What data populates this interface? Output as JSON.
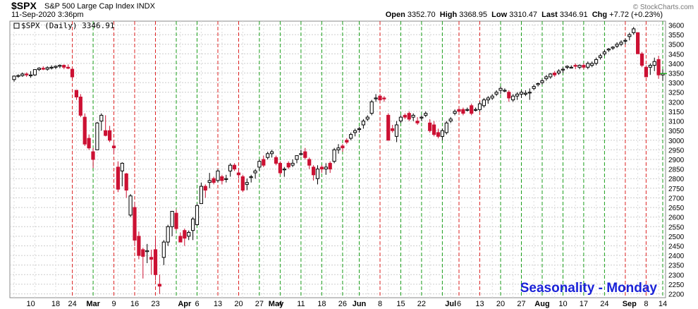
{
  "header": {
    "symbol": "$SPX",
    "description": "S&P 500 Large Cap Index  INDX",
    "date": "11-Sep-2020 3:36pm",
    "open_label": "Open",
    "open": "3352.70",
    "high_label": "High",
    "high": "3368.95",
    "low_label": "Low",
    "low": "3310.47",
    "last_label": "Last",
    "last": "3346.91",
    "chg_label": "Chg",
    "chg": "+7.72 (+0.23%)",
    "credit": "© StockCharts.com"
  },
  "chart_data": {
    "type": "candlestick",
    "legend": "$SPX (Daily) 3346.91",
    "annotation": "Seasonality - Monday",
    "ylim": [
      2180,
      3620
    ],
    "y_ticks": [
      2200,
      2250,
      2300,
      2350,
      2400,
      2450,
      2500,
      2550,
      2600,
      2650,
      2700,
      2750,
      2800,
      2850,
      2900,
      2950,
      3000,
      3050,
      3100,
      3150,
      3200,
      3250,
      3300,
      3350,
      3400,
      3450,
      3500,
      3550,
      3600
    ],
    "x_ticks": [
      {
        "label": "10",
        "i": 4,
        "bold": false
      },
      {
        "label": "18",
        "i": 10,
        "bold": false
      },
      {
        "label": "24",
        "i": 14,
        "bold": false
      },
      {
        "label": "Mar",
        "i": 19,
        "bold": true
      },
      {
        "label": "9",
        "i": 24,
        "bold": false
      },
      {
        "label": "16",
        "i": 29,
        "bold": false
      },
      {
        "label": "23",
        "i": 34,
        "bold": false
      },
      {
        "label": "Apr",
        "i": 41,
        "bold": true
      },
      {
        "label": "6",
        "i": 44,
        "bold": false
      },
      {
        "label": "13",
        "i": 49,
        "bold": false
      },
      {
        "label": "20",
        "i": 54,
        "bold": false
      },
      {
        "label": "27",
        "i": 59,
        "bold": false
      },
      {
        "label": "May",
        "i": 63,
        "bold": true
      },
      {
        "label": "4",
        "i": 64,
        "bold": false
      },
      {
        "label": "11",
        "i": 69,
        "bold": false
      },
      {
        "label": "18",
        "i": 74,
        "bold": false
      },
      {
        "label": "26",
        "i": 79,
        "bold": false
      },
      {
        "label": "Jun",
        "i": 83,
        "bold": true
      },
      {
        "label": "8",
        "i": 88,
        "bold": false
      },
      {
        "label": "15",
        "i": 93,
        "bold": false
      },
      {
        "label": "22",
        "i": 98,
        "bold": false
      },
      {
        "label": "Jul",
        "i": 105,
        "bold": true
      },
      {
        "label": "6",
        "i": 107,
        "bold": false
      },
      {
        "label": "13",
        "i": 112,
        "bold": false
      },
      {
        "label": "20",
        "i": 117,
        "bold": false
      },
      {
        "label": "27",
        "i": 122,
        "bold": false
      },
      {
        "label": "Aug",
        "i": 127,
        "bold": true
      },
      {
        "label": "10",
        "i": 132,
        "bold": false
      },
      {
        "label": "17",
        "i": 137,
        "bold": false
      },
      {
        "label": "24",
        "i": 142,
        "bold": false
      },
      {
        "label": "Sep",
        "i": 148,
        "bold": true
      },
      {
        "label": "8",
        "i": 152,
        "bold": false
      },
      {
        "label": "14",
        "i": 156,
        "bold": false
      }
    ],
    "monday_lines": [
      {
        "i": 14,
        "color": "red"
      },
      {
        "i": 19,
        "color": "green"
      },
      {
        "i": 24,
        "color": "red"
      },
      {
        "i": 29,
        "color": "red"
      },
      {
        "i": 34,
        "color": "red"
      },
      {
        "i": 39,
        "color": "green"
      },
      {
        "i": 44,
        "color": "green"
      },
      {
        "i": 49,
        "color": "red"
      },
      {
        "i": 54,
        "color": "red"
      },
      {
        "i": 59,
        "color": "green"
      },
      {
        "i": 64,
        "color": "green"
      },
      {
        "i": 69,
        "color": "green"
      },
      {
        "i": 74,
        "color": "green"
      },
      {
        "i": 79,
        "color": "green"
      },
      {
        "i": 83,
        "color": "green"
      },
      {
        "i": 88,
        "color": "red"
      },
      {
        "i": 93,
        "color": "green"
      },
      {
        "i": 98,
        "color": "green"
      },
      {
        "i": 103,
        "color": "green"
      },
      {
        "i": 107,
        "color": "red"
      },
      {
        "i": 112,
        "color": "red"
      },
      {
        "i": 117,
        "color": "green"
      },
      {
        "i": 122,
        "color": "green"
      },
      {
        "i": 127,
        "color": "green"
      },
      {
        "i": 132,
        "color": "green"
      },
      {
        "i": 137,
        "color": "green"
      },
      {
        "i": 142,
        "color": "green"
      },
      {
        "i": 147,
        "color": "red"
      },
      {
        "i": 152,
        "color": "red"
      },
      {
        "i": 156,
        "color": "green"
      }
    ],
    "gridline_every": 5,
    "candles": [
      [
        3316,
        3337,
        3305,
        3334
      ],
      [
        3334,
        3343,
        3325,
        3337
      ],
      [
        3337,
        3353,
        3330,
        3345
      ],
      [
        3345,
        3353,
        3330,
        3340
      ],
      [
        3340,
        3360,
        3325,
        3340
      ],
      [
        3340,
        3370,
        3335,
        3368
      ],
      [
        3368,
        3380,
        3360,
        3375
      ],
      [
        3375,
        3385,
        3365,
        3370
      ],
      [
        3370,
        3385,
        3362,
        3378
      ],
      [
        3378,
        3390,
        3368,
        3380
      ],
      [
        3380,
        3390,
        3370,
        3385
      ],
      [
        3385,
        3395,
        3375,
        3390
      ],
      [
        3390,
        3395,
        3370,
        3380
      ],
      [
        3380,
        3395,
        3370,
        3375
      ],
      [
        3370,
        3375,
        3320,
        3330
      ],
      [
        3260,
        3260,
        3210,
        3225
      ],
      [
        3225,
        3240,
        3120,
        3130
      ],
      [
        3120,
        3140,
        2970,
        2980
      ],
      [
        3010,
        3030,
        2950,
        2960
      ],
      [
        2940,
        2960,
        2855,
        2900
      ],
      [
        2950,
        3095,
        2950,
        3090
      ],
      [
        3100,
        3140,
        3050,
        3130
      ],
      [
        3050,
        3130,
        3020,
        3025
      ],
      [
        3050,
        3075,
        2990,
        3000
      ],
      [
        2970,
        2990,
        2930,
        2960
      ],
      [
        2860,
        2890,
        2730,
        2745
      ],
      [
        2840,
        2885,
        2760,
        2880
      ],
      [
        2825,
        2830,
        2700,
        2740
      ],
      [
        2610,
        2720,
        2600,
        2710
      ],
      [
        2650,
        2680,
        2450,
        2480
      ],
      [
        2500,
        2525,
        2380,
        2400
      ],
      [
        2430,
        2440,
        2280,
        2395
      ],
      [
        2420,
        2460,
        2360,
        2425
      ],
      [
        2390,
        2430,
        2300,
        2380
      ],
      [
        2430,
        2490,
        2270,
        2300
      ],
      [
        2250,
        2300,
        2200,
        2240
      ],
      [
        2390,
        2480,
        2350,
        2470
      ],
      [
        2470,
        2560,
        2450,
        2550
      ],
      [
        2550,
        2630,
        2500,
        2630
      ],
      [
        2620,
        2640,
        2530,
        2540
      ],
      [
        2500,
        2520,
        2470,
        2470
      ],
      [
        2530,
        2540,
        2450,
        2490
      ],
      [
        2500,
        2530,
        2480,
        2520
      ],
      [
        2530,
        2600,
        2480,
        2590
      ],
      [
        2560,
        2670,
        2555,
        2660
      ],
      [
        2670,
        2780,
        2670,
        2760
      ],
      [
        2760,
        2770,
        2700,
        2740
      ],
      [
        2780,
        2830,
        2750,
        2790
      ],
      [
        2800,
        2810,
        2770,
        2780
      ],
      [
        2790,
        2850,
        2780,
        2840
      ],
      [
        2810,
        2820,
        2770,
        2790
      ],
      [
        2800,
        2820,
        2780,
        2800
      ],
      [
        2840,
        2880,
        2810,
        2870
      ],
      [
        2870,
        2880,
        2840,
        2850
      ],
      [
        2830,
        2850,
        2800,
        2820
      ],
      [
        2810,
        2820,
        2730,
        2740
      ],
      [
        2770,
        2800,
        2740,
        2780
      ],
      [
        2810,
        2820,
        2780,
        2810
      ],
      [
        2830,
        2850,
        2800,
        2840
      ],
      [
        2860,
        2900,
        2840,
        2890
      ],
      [
        2900,
        2920,
        2860,
        2870
      ],
      [
        2910,
        2940,
        2900,
        2930
      ],
      [
        2930,
        2950,
        2910,
        2940
      ],
      [
        2910,
        2920,
        2870,
        2880
      ],
      [
        2880,
        2890,
        2820,
        2830
      ],
      [
        2850,
        2860,
        2810,
        2850
      ],
      [
        2880,
        2890,
        2850,
        2860
      ],
      [
        2870,
        2900,
        2860,
        2880
      ],
      [
        2900,
        2920,
        2880,
        2920
      ],
      [
        2930,
        2950,
        2920,
        2930
      ],
      [
        2940,
        2960,
        2900,
        2910
      ],
      [
        2900,
        2910,
        2850,
        2870
      ],
      [
        2860,
        2870,
        2790,
        2820
      ],
      [
        2800,
        2870,
        2770,
        2850
      ],
      [
        2860,
        2870,
        2830,
        2850
      ],
      [
        2850,
        2880,
        2820,
        2860
      ],
      [
        2880,
        2890,
        2830,
        2850
      ],
      [
        2890,
        2960,
        2880,
        2950
      ],
      [
        2950,
        2980,
        2930,
        2960
      ],
      [
        2970,
        2980,
        2940,
        2960
      ],
      [
        3000,
        3010,
        2980,
        2990
      ],
      [
        3010,
        3040,
        3000,
        3030
      ],
      [
        3040,
        3060,
        3020,
        3050
      ],
      [
        3060,
        3070,
        3040,
        3060
      ],
      [
        3080,
        3110,
        3060,
        3100
      ],
      [
        3110,
        3130,
        3100,
        3120
      ],
      [
        3140,
        3210,
        3130,
        3200
      ],
      [
        3220,
        3240,
        3200,
        3220
      ],
      [
        3230,
        3240,
        3200,
        3210
      ],
      [
        3220,
        3230,
        3200,
        3215
      ],
      [
        3130,
        3140,
        3000,
        3000
      ],
      [
        3060,
        3080,
        3040,
        3050
      ],
      [
        3020,
        3100,
        2990,
        3080
      ],
      [
        3100,
        3130,
        3090,
        3120
      ],
      [
        3130,
        3140,
        3110,
        3120
      ],
      [
        3140,
        3150,
        3100,
        3110
      ],
      [
        3120,
        3140,
        3100,
        3130
      ],
      [
        3100,
        3120,
        3080,
        3090
      ],
      [
        3120,
        3130,
        3100,
        3120
      ],
      [
        3130,
        3150,
        3120,
        3140
      ],
      [
        3090,
        3110,
        3040,
        3050
      ],
      [
        3080,
        3100,
        3020,
        3030
      ],
      [
        3040,
        3060,
        3010,
        3020
      ],
      [
        3020,
        3060,
        3000,
        3050
      ],
      [
        3040,
        3100,
        3030,
        3090
      ],
      [
        3100,
        3120,
        3090,
        3110
      ],
      [
        3140,
        3160,
        3130,
        3150
      ],
      [
        3160,
        3170,
        3140,
        3150
      ],
      [
        3160,
        3170,
        3130,
        3140
      ],
      [
        3160,
        3170,
        3150,
        3160
      ],
      [
        3180,
        3190,
        3130,
        3140
      ],
      [
        3160,
        3170,
        3150,
        3160
      ],
      [
        3160,
        3200,
        3150,
        3190
      ],
      [
        3180,
        3220,
        3170,
        3210
      ],
      [
        3210,
        3230,
        3190,
        3220
      ],
      [
        3220,
        3240,
        3210,
        3230
      ],
      [
        3240,
        3260,
        3230,
        3250
      ],
      [
        3260,
        3280,
        3240,
        3270
      ],
      [
        3260,
        3270,
        3250,
        3260
      ],
      [
        3250,
        3260,
        3200,
        3220
      ],
      [
        3210,
        3240,
        3200,
        3230
      ],
      [
        3230,
        3250,
        3210,
        3240
      ],
      [
        3240,
        3260,
        3220,
        3250
      ],
      [
        3240,
        3260,
        3230,
        3245
      ],
      [
        3250,
        3270,
        3210,
        3250
      ],
      [
        3270,
        3290,
        3260,
        3280
      ],
      [
        3290,
        3300,
        3280,
        3295
      ],
      [
        3300,
        3320,
        3290,
        3310
      ],
      [
        3320,
        3340,
        3310,
        3330
      ],
      [
        3330,
        3350,
        3320,
        3345
      ],
      [
        3350,
        3360,
        3330,
        3340
      ],
      [
        3350,
        3370,
        3340,
        3360
      ],
      [
        3370,
        3380,
        3350,
        3370
      ],
      [
        3380,
        3390,
        3370,
        3385
      ],
      [
        3380,
        3390,
        3375,
        3380
      ],
      [
        3390,
        3400,
        3370,
        3385
      ],
      [
        3380,
        3395,
        3370,
        3390
      ],
      [
        3390,
        3400,
        3370,
        3380
      ],
      [
        3380,
        3410,
        3370,
        3400
      ],
      [
        3390,
        3410,
        3380,
        3400
      ],
      [
        3400,
        3430,
        3390,
        3420
      ],
      [
        3430,
        3450,
        3420,
        3440
      ],
      [
        3450,
        3470,
        3440,
        3460
      ],
      [
        3470,
        3480,
        3460,
        3475
      ],
      [
        3480,
        3490,
        3470,
        3485
      ],
      [
        3490,
        3510,
        3480,
        3500
      ],
      [
        3500,
        3520,
        3490,
        3510
      ],
      [
        3520,
        3530,
        3500,
        3520
      ],
      [
        3540,
        3560,
        3520,
        3550
      ],
      [
        3560,
        3590,
        3550,
        3580
      ],
      [
        3560,
        3560,
        3450,
        3450
      ],
      [
        3450,
        3460,
        3380,
        3390
      ],
      [
        3380,
        3390,
        3330,
        3330
      ],
      [
        3380,
        3400,
        3340,
        3390
      ],
      [
        3390,
        3430,
        3360,
        3410
      ],
      [
        3420,
        3440,
        3320,
        3340
      ],
      [
        3340,
        3369,
        3310,
        3347
      ]
    ]
  }
}
